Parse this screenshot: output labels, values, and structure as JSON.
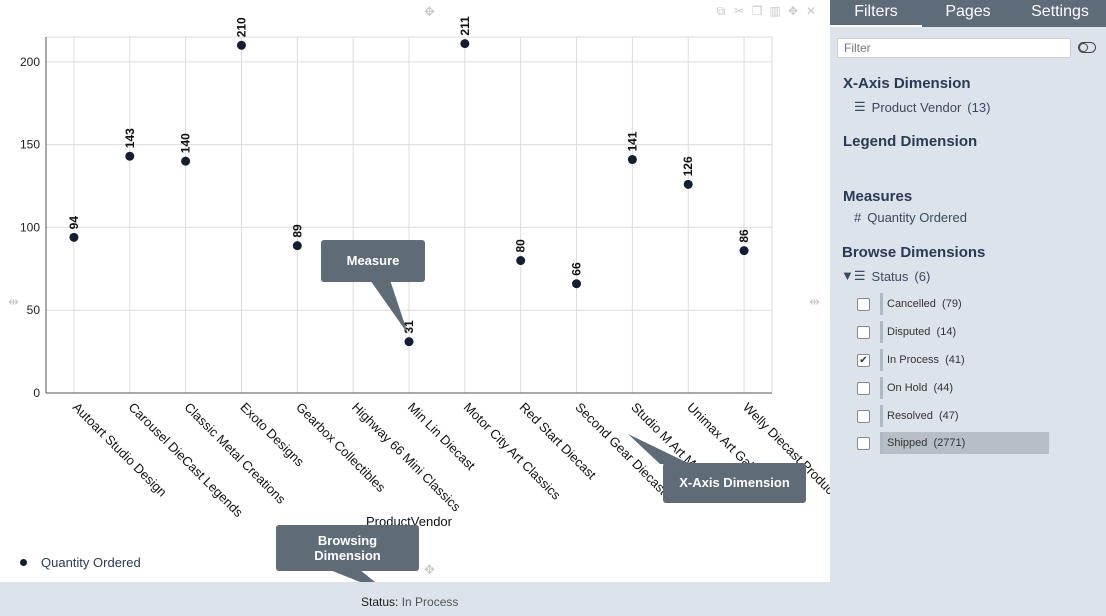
{
  "chart_data": {
    "type": "scatter",
    "categories": [
      "Autoart Studio Design",
      "Carousel DieCast Legends",
      "Classic Metal Creations",
      "Exoto Designs",
      "Gearbox Collectibles",
      "Highway 66 Mini Classics",
      "Min Lin Diecast",
      "Motor City Art Classics",
      "Red Start Diecast",
      "Second Gear Diecast",
      "Studio M Art Models",
      "Unimax Art Galleries",
      "Welly Diecast Productions"
    ],
    "values": [
      94,
      143,
      140,
      210,
      89,
      null,
      31,
      211,
      80,
      66,
      141,
      126,
      86
    ],
    "data_labels": [
      "94",
      "143",
      "140",
      "210",
      "89",
      "",
      "31",
      "211",
      "80",
      "66",
      "141",
      "126",
      "86"
    ],
    "xlabel": "ProductVendor",
    "ylabel": "",
    "ylim": [
      0,
      215
    ],
    "yticks": [
      0,
      50,
      100,
      150,
      200
    ],
    "ytick_labels": [
      "0",
      "50",
      "100",
      "150",
      "200"
    ],
    "legend": "Quantity Ordered",
    "legend_position": "bottom-left",
    "grid": true,
    "marker_color": "#141e32"
  },
  "callouts": {
    "measure": "Measure",
    "xaxis": "X-Axis Dimension",
    "browsing_line1": "Browsing",
    "browsing_line2": "Dimension"
  },
  "footer": {
    "status_key": "Status:",
    "status_value": "In Process"
  },
  "sidebar": {
    "tabs": [
      "Filters",
      "Pages",
      "Settings"
    ],
    "filter_placeholder": "Filter",
    "xaxis_title": "X-Axis Dimension",
    "xaxis_item": "Product Vendor",
    "xaxis_count": "(13)",
    "legend_title": "Legend Dimension",
    "measures_title": "Measures",
    "measure_item": "Quantity Ordered",
    "browse_title": "Browse Dimensions",
    "browse_item": "Status",
    "browse_count": "(6)",
    "options": [
      {
        "label": "Cancelled",
        "count": "(79)",
        "checked": false
      },
      {
        "label": "Disputed",
        "count": "(14)",
        "checked": false
      },
      {
        "label": "In Process",
        "count": "(41)",
        "checked": true
      },
      {
        "label": "On Hold",
        "count": "(44)",
        "checked": false
      },
      {
        "label": "Resolved",
        "count": "(47)",
        "checked": false
      },
      {
        "label": "Shipped",
        "count": "(2771)",
        "checked": false
      }
    ]
  },
  "toolbar_icons": [
    "copy-icon",
    "scissors-icon",
    "duplicate-icon",
    "bar-chart-icon",
    "move-icon",
    "close-icon"
  ]
}
